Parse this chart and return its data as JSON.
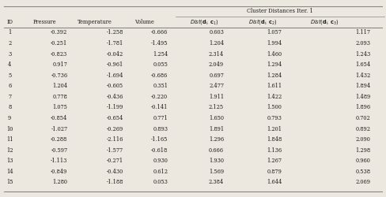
{
  "ids": [
    "1",
    "2",
    "3",
    "4",
    "5",
    "6",
    "7",
    "8",
    "9",
    "10",
    "11",
    "12",
    "13",
    "14",
    "15"
  ],
  "pressure": [
    "-0.392",
    "-0.251",
    "-0.823",
    "0.917",
    "-0.736",
    "1.204",
    "0.778",
    "1.075",
    "-0.854",
    "-1.027",
    "-0.288",
    "-0.597",
    "-1.113",
    "-0.849",
    "1.280"
  ],
  "temperature": [
    "-1.258",
    "-1.781",
    "-0.042",
    "-0.961",
    "-1.694",
    "-0.605",
    "-0.436",
    "-1.199",
    "-0.654",
    "-0.269",
    "-2.116",
    "-1.577",
    "-0.271",
    "-0.430",
    "-1.188"
  ],
  "volume": [
    "-0.666",
    "-1.495",
    "1.254",
    "0.055",
    "-0.686",
    "0.351",
    "-0.220",
    "-0.141",
    "0.771",
    "0.893",
    "-1.165",
    "-0.618",
    "0.930",
    "0.612",
    "0.053"
  ],
  "dist_c1": [
    "0.603",
    "1.204",
    "2.314",
    "2.049",
    "0.697",
    "2.477",
    "1.911",
    "2.125",
    "1.650",
    "1.891",
    "1.296",
    "0.666",
    "1.930",
    "1.569",
    "2.384"
  ],
  "dist_c2": [
    "1.057",
    "1.994",
    "1.460",
    "1.294",
    "1.284",
    "1.611",
    "1.422",
    "1.500",
    "0.793",
    "1.201",
    "1.848",
    "1.136",
    "1.267",
    "0.879",
    "1.644"
  ],
  "dist_c3": [
    "1.117",
    "2.093",
    "1.243",
    "1.654",
    "1.432",
    "1.894",
    "1.489",
    "1.896",
    "0.702",
    "0.892",
    "2.090",
    "1.298",
    "0.960",
    "0.538",
    "2.069"
  ],
  "bg_color": "#ede8df",
  "line_color": "#888888",
  "text_color": "#1a1a1a",
  "header_color": "#1a1a1a"
}
